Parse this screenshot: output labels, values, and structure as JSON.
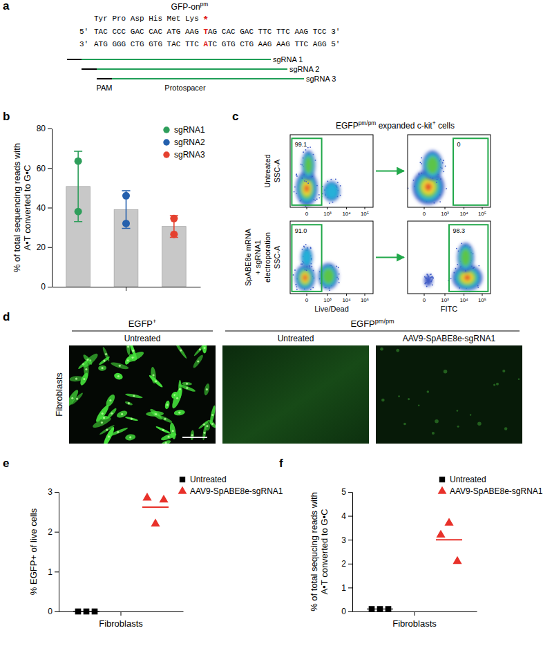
{
  "panel_labels": [
    "a",
    "b",
    "c",
    "d",
    "e",
    "f"
  ],
  "panel_a": {
    "title": [
      {
        "text": "GFP-on",
        "superscript": "pm"
      }
    ],
    "amino_acids": "Tyr Pro Asp His Met Lys",
    "stop": "*",
    "top_strand": {
      "start": "5'",
      "before": "TAC CCC GAC CAC ATG AAG",
      "mutant": "T",
      "after": "AG CAC GAC TTC TTC AAG TCC",
      "end": "3'"
    },
    "bottom_strand": {
      "start": "3'",
      "before": "ATG GGG CTG GTG TAC TTC",
      "mutant": "A",
      "after": "TC GTG CTG AAG AAG TTC AGG",
      "end": "5'"
    },
    "guides": [
      "sgRNA 1",
      "sgRNA 2",
      "sgRNA 3"
    ],
    "pam": "PAM",
    "protospacer": "Protospacer"
  },
  "chart_data": [
    {
      "type": "bar",
      "categories": [
        null
      ],
      "color": "#c8c8c8",
      "ylabel": "% of total sequencing reads with A•T converted to G•C",
      "ylim": [
        0,
        80
      ],
      "yticks": [
        0,
        20,
        40,
        60,
        80
      ],
      "legend": "top-right",
      "series": [
        {
          "name": "sgRNA1",
          "color": "#2e9e5b",
          "marker": "circle",
          "values": [
            50.7
          ],
          "error": [
            17.8
          ],
          "points": [
            [
              63.5,
              38.0
            ]
          ]
        },
        {
          "name": "sgRNA2",
          "color": "#2460ad",
          "marker": "circle",
          "values": [
            39.0
          ],
          "error": [
            9.5
          ],
          "points": [
            [
              46.0,
              32.0
            ]
          ]
        },
        {
          "name": "sgRNA3",
          "color": "#e5412f",
          "marker": "circle",
          "values": [
            30.5
          ],
          "error": [
            5.5
          ],
          "points": [
            [
              34.5,
              26.5
            ]
          ]
        }
      ]
    },
    {
      "type": "scatter",
      "categories": [
        "Fibroblasts"
      ],
      "ylabel": "% EGFP+ of live cells",
      "ylim": [
        0,
        3
      ],
      "yticks": [
        0,
        1,
        2,
        3
      ],
      "legend": "top-right",
      "series": [
        {
          "name": "Untreated",
          "color": "#000000",
          "marker": "square",
          "values": [
            [
              0,
              0,
              0
            ]
          ],
          "mean": [
            0
          ]
        },
        {
          "name": "AAV9-SpABE8e-sgRNA1",
          "color": "#e8312a",
          "marker": "triangle",
          "values": [
            [
              2.85,
              2.2,
              2.8
            ]
          ],
          "mean": [
            2.62
          ]
        }
      ]
    },
    {
      "type": "scatter",
      "categories": [
        "Fibroblasts"
      ],
      "ylabel": "% of total sequcing reads with A•T converted to G•C",
      "ylim": [
        0,
        5
      ],
      "yticks": [
        0,
        1,
        2,
        3,
        4,
        5
      ],
      "legend": "top-right",
      "series": [
        {
          "name": "Untreated",
          "color": "#000000",
          "marker": "square",
          "values": [
            [
              0.1,
              0.1,
              0.1
            ]
          ],
          "mean": [
            0.1
          ]
        },
        {
          "name": "AAV9-SpABE8e-sgRNA1",
          "color": "#e8312a",
          "marker": "triangle",
          "values": [
            [
              3.2,
              3.7,
              2.1
            ]
          ],
          "mean": [
            3.0
          ]
        }
      ]
    }
  ],
  "panel_c": {
    "title": [
      {
        "text": "EGFP",
        "superscript": "pm/pm"
      },
      {
        "text": " expanded c-kit",
        "superscript": "+"
      },
      {
        "text": " cells"
      }
    ],
    "rows": [
      {
        "label": [
          "Untreated"
        ],
        "y_title": "SSC-A",
        "plots": [
          {
            "gate": "99.1"
          },
          {
            "gate": "0"
          }
        ]
      },
      {
        "label": [
          "SpABE8e mRNA",
          "+ sgRNA1",
          "electroporation"
        ],
        "y_title": "SSC-A",
        "plots": [
          {
            "gate": "91.0"
          },
          {
            "gate": "98.3"
          }
        ]
      }
    ],
    "x_titles": [
      "Live/Dead",
      "FITC"
    ],
    "x_ticks": [
      "0",
      "10³",
      "10⁴",
      "10⁵"
    ]
  },
  "panel_d": {
    "groups": [
      [
        {
          "text": "EGFP",
          "superscript": "+"
        }
      ],
      [
        {
          "text": "EGFP",
          "superscript": "pm/pm"
        }
      ]
    ],
    "conditions": [
      "Untreated",
      "Untreated",
      "AAV9-SpABE8e-sgRNA1"
    ],
    "row_label": "Fibroblasts"
  }
}
